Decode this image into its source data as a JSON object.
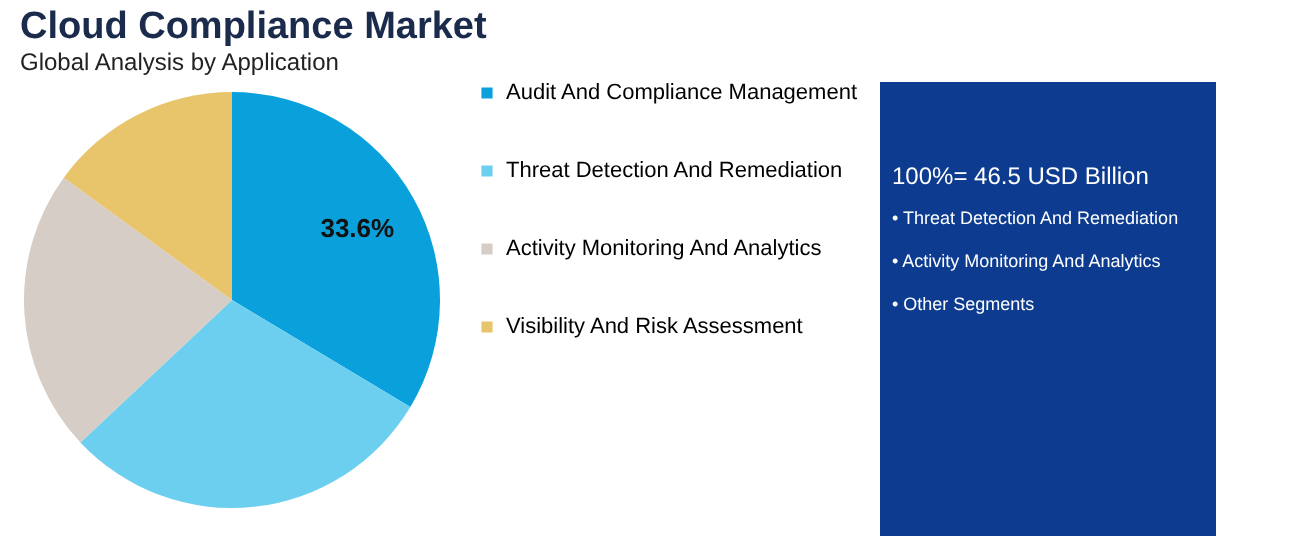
{
  "chart_data": {
    "type": "pie",
    "title": "Cloud Compliance Market",
    "subtitle": "Global Analysis by Application",
    "categories": [
      "Audit And Compliance Management",
      "Threat Detection And Remediation",
      "Activity Monitoring And Analytics",
      "Visibility And Risk Assessment"
    ],
    "values": [
      33.6,
      29.4,
      22.0,
      15.0
    ],
    "colors": [
      "#0aa0dc",
      "#6dcff0",
      "#d6cdc6",
      "#e8c46b"
    ],
    "value_labels": [
      "33.6%",
      null,
      null,
      null
    ],
    "legend": "right",
    "annotations": [
      "100%= 46.5 USD Billion",
      "• Threat Detection And Remediation",
      "• Activity Monitoring And Analytics",
      "• Other Segments"
    ]
  }
}
